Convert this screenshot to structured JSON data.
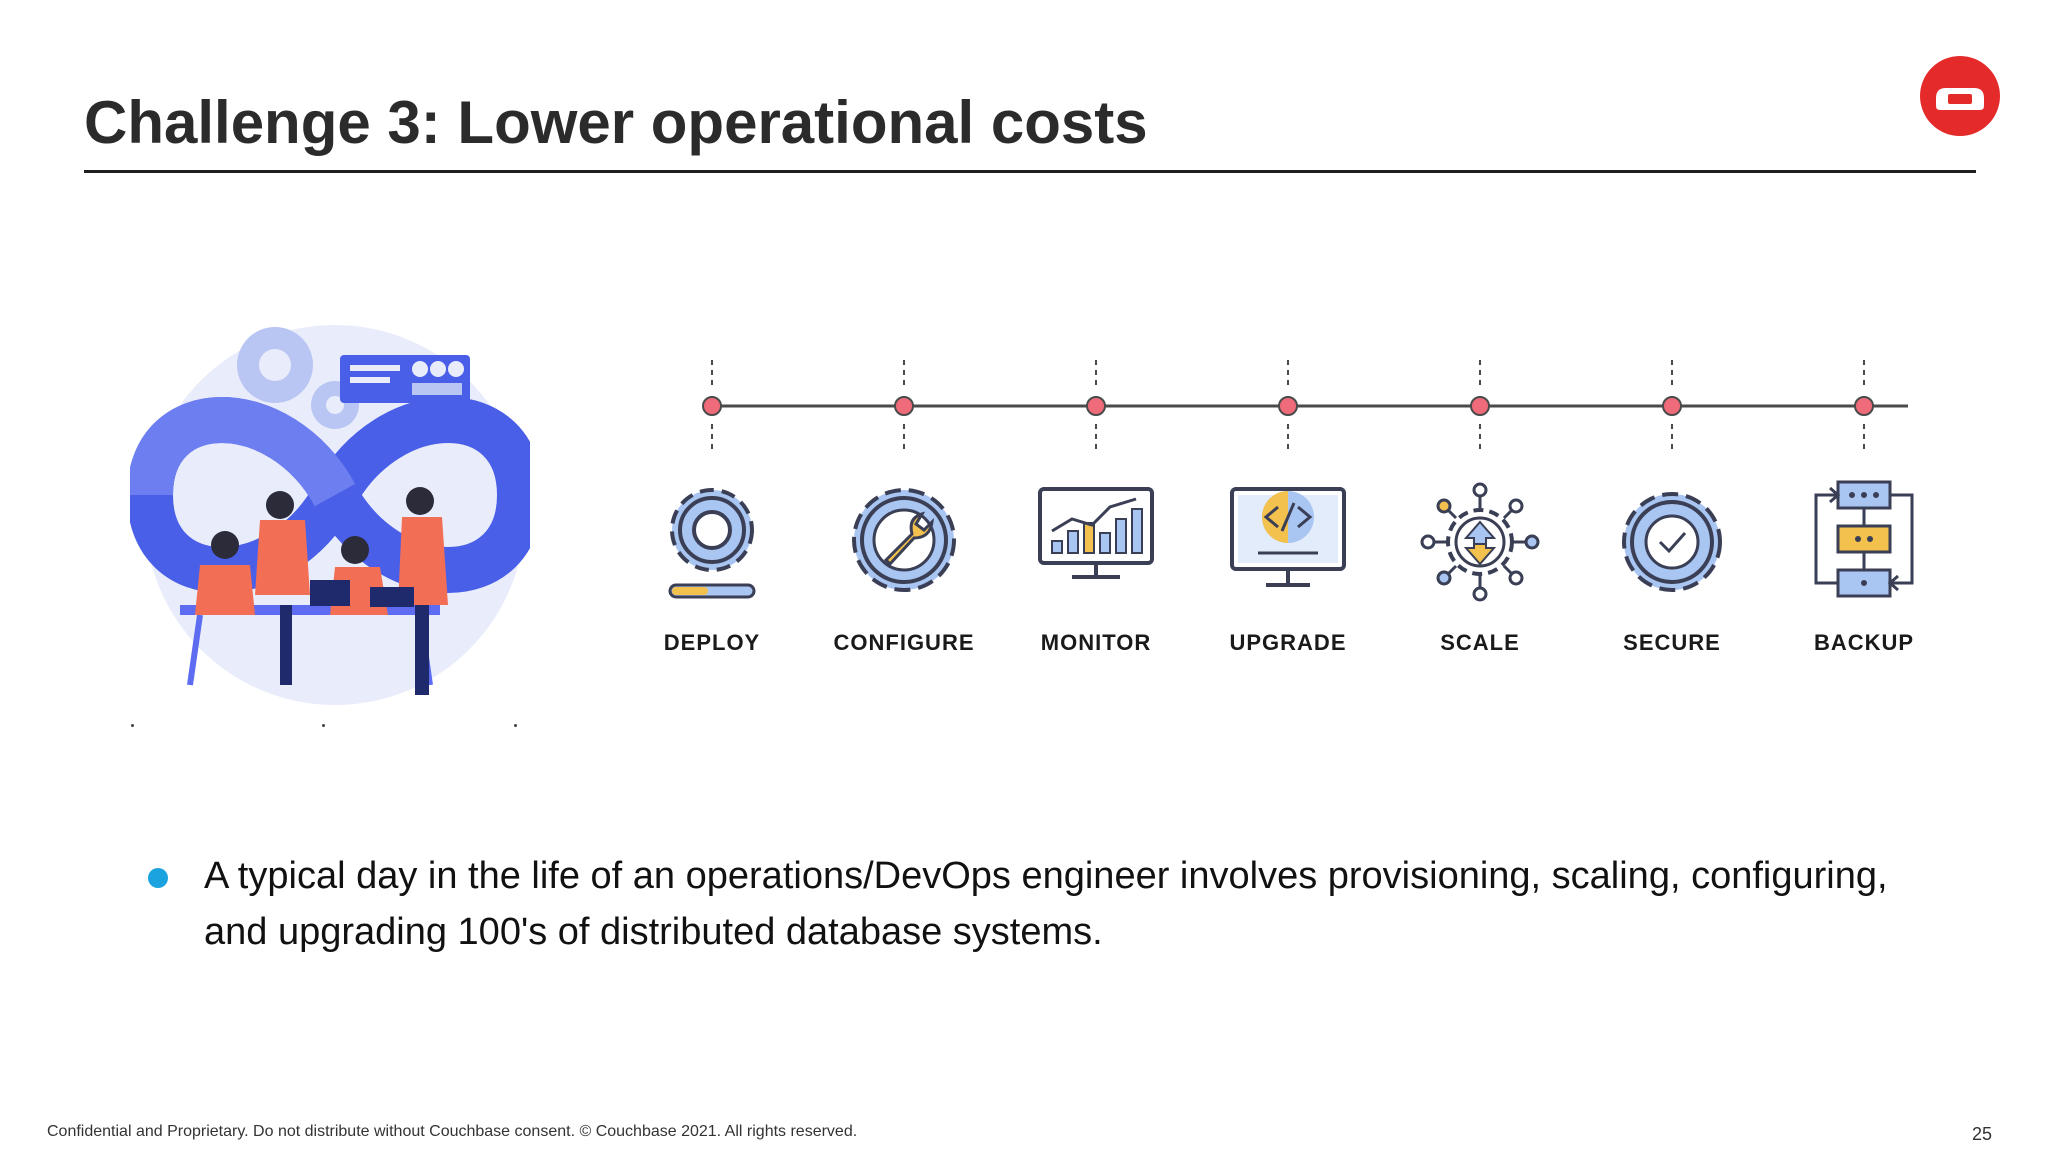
{
  "slide": {
    "title": "Challenge 3: Lower operational costs",
    "page_number": "25",
    "footer": "Confidential and Proprietary. Do not distribute without Couchbase consent. © Couchbase 2021. All rights reserved."
  },
  "timeline": {
    "steps": [
      {
        "label": "DEPLOY",
        "icon": "gear-progress-icon"
      },
      {
        "label": "CONFIGURE",
        "icon": "wrench-gear-icon"
      },
      {
        "label": "MONITOR",
        "icon": "monitor-chart-icon"
      },
      {
        "label": "UPGRADE",
        "icon": "code-monitor-icon"
      },
      {
        "label": "SCALE",
        "icon": "scale-network-icon"
      },
      {
        "label": "SECURE",
        "icon": "gear-check-icon"
      },
      {
        "label": "BACKUP",
        "icon": "backup-flow-icon"
      }
    ]
  },
  "bullet": {
    "text": "A typical day in the life of an operations/DevOps engineer involves provisioning, scaling, configuring, and upgrading 100's of distributed database systems."
  },
  "colors": {
    "brand_red": "#E52A2A",
    "bullet_blue": "#1AA3DE",
    "node_pink": "#F06B7A",
    "icon_blue": "#A9C5F2",
    "icon_stroke": "#3A3F55",
    "accent_yellow": "#F2C14E"
  }
}
